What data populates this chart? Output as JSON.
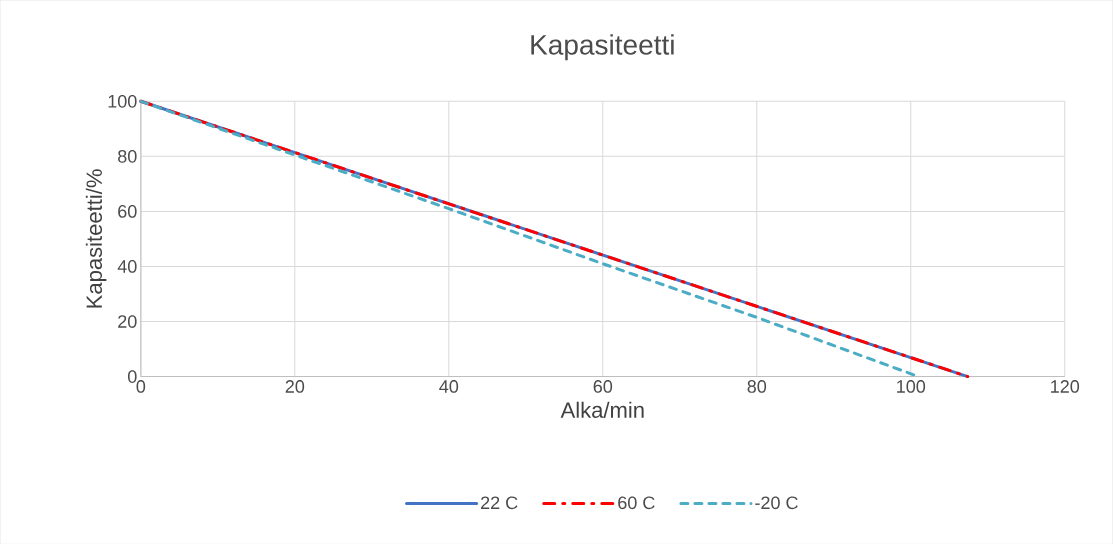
{
  "chart_data": {
    "type": "line",
    "title": "Kapasiteetti",
    "xlabel": "Alka/min",
    "ylabel": "Kapasiteetti/%",
    "xlim": [
      0,
      120
    ],
    "xticks": [
      0,
      20,
      40,
      60,
      80,
      100,
      120
    ],
    "ylim": [
      0,
      100
    ],
    "yticks": [
      0,
      20,
      40,
      60,
      80,
      100
    ],
    "grid": true,
    "legend": "bottom",
    "marker": "none",
    "series": [
      {
        "name": "22 C",
        "color": "#4472c4",
        "line_style": "solid",
        "x": [
          0,
          107.4
        ],
        "values": [
          100,
          0
        ]
      },
      {
        "name": "60 C",
        "color": "#ff0000",
        "line_style": "dashdot",
        "x": [
          0,
          107.4
        ],
        "values": [
          100,
          0
        ]
      },
      {
        "name": "-20 C",
        "color": "#4bacc6",
        "line_style": "dashed",
        "x": [
          0,
          20,
          40,
          60,
          80,
          101
        ],
        "values": [
          100,
          80.5,
          61,
          41,
          21.5,
          0
        ]
      }
    ]
  }
}
